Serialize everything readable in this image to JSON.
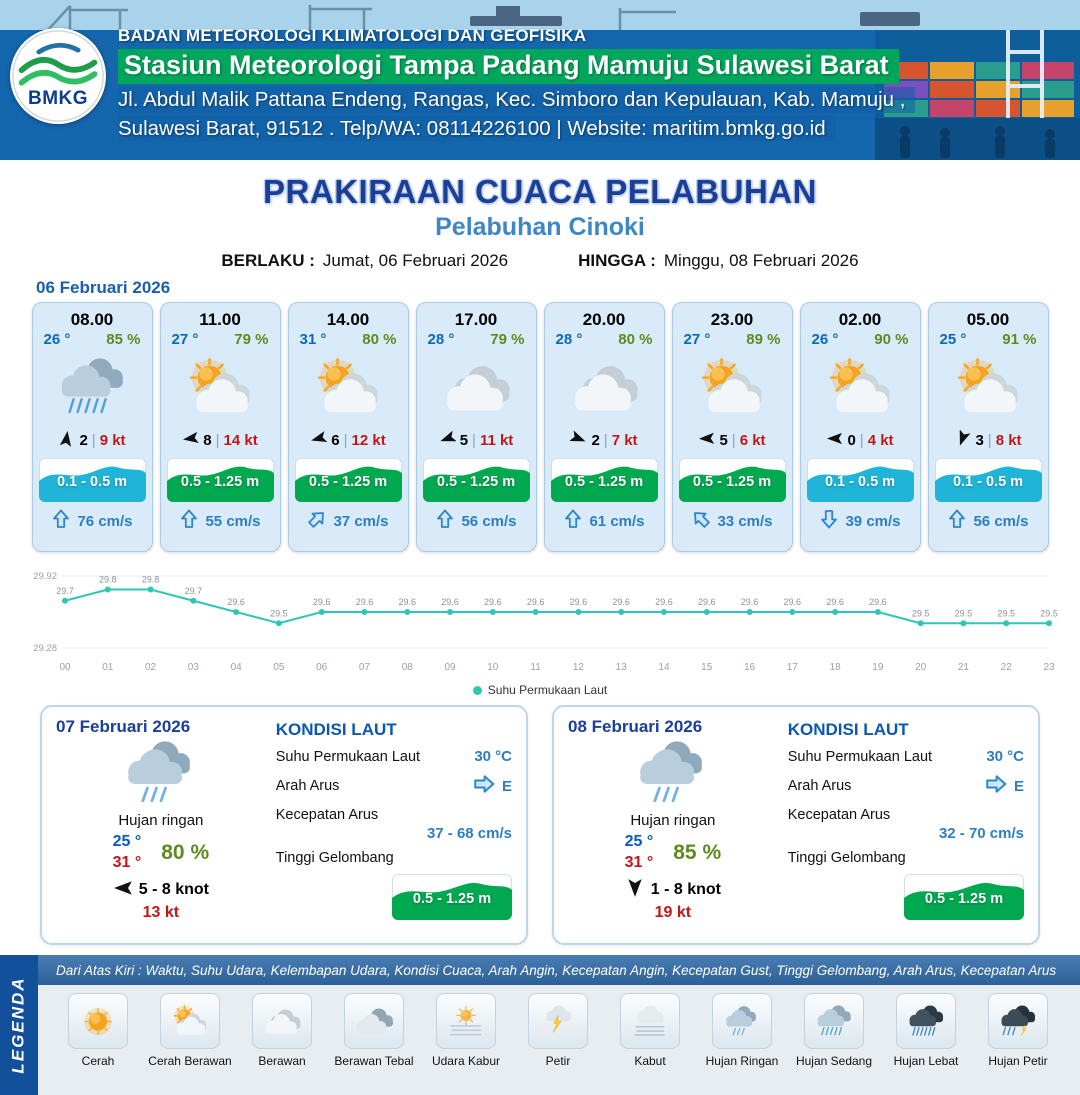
{
  "header": {
    "org": "BADAN METEOROLOGI KLIMATOLOGI DAN GEOFISIKA",
    "station": "Stasiun Meteorologi Tampa Padang Mamuju Sulawesi Barat",
    "address_line1": "Jl. Abdul Malik Pattana Endeng, Rangas, Kec. Simboro dan Kepulauan, Kab. Mamuju ,",
    "address_line2": "Sulawesi Barat, 91512 . Telp/WA: 08114226100 | Website: maritim.bmkg.go.id",
    "logo_text": "BMKG"
  },
  "title": {
    "main": "PRAKIRAAN CUACA PELABUHAN",
    "subtitle": "Pelabuhan Cinoki",
    "berlaku_label": "BERLAKU :",
    "berlaku_value": "Jumat, 06 Februari 2026",
    "hingga_label": "HINGGA :",
    "hingga_value": "Minggu, 08 Februari 2026"
  },
  "forecast": {
    "date": "06 Februari 2026",
    "wind_divider": "|",
    "cards": [
      {
        "time": "08.00",
        "temp": "26 °",
        "humidity": "85 %",
        "icon": "hujan-sedang",
        "wind_deg": 8,
        "wind_num": "2",
        "wind_speed": "9 kt",
        "wave": "0.1 - 0.5 m",
        "wave_color": "cyan",
        "current_deg": 0,
        "current": "76 cm/s"
      },
      {
        "time": "11.00",
        "temp": "27 °",
        "humidity": "79 %",
        "icon": "cerah-berawan",
        "wind_deg": 262,
        "wind_num": "8",
        "wind_speed": "14 kt",
        "wave": "0.5 - 1.25 m",
        "wave_color": "green",
        "current_deg": 0,
        "current": "55 cm/s"
      },
      {
        "time": "14.00",
        "temp": "31 °",
        "humidity": "80 %",
        "icon": "cerah-berawan",
        "wind_deg": 255,
        "wind_num": "6",
        "wind_speed": "12 kt",
        "wave": "0.5 - 1.25 m",
        "wave_color": "green",
        "current_deg": 45,
        "current": "37 cm/s"
      },
      {
        "time": "17.00",
        "temp": "28 °",
        "humidity": "79 %",
        "icon": "berawan",
        "wind_deg": 250,
        "wind_num": "5",
        "wind_speed": "11 kt",
        "wave": "0.5 - 1.25 m",
        "wave_color": "green",
        "current_deg": 0,
        "current": "56 cm/s"
      },
      {
        "time": "20.00",
        "temp": "28 °",
        "humidity": "80 %",
        "icon": "berawan",
        "wind_deg": 112,
        "wind_num": "2",
        "wind_speed": "7 kt",
        "wave": "0.5 - 1.25 m",
        "wave_color": "green",
        "current_deg": 0,
        "current": "61 cm/s"
      },
      {
        "time": "23.00",
        "temp": "27 °",
        "humidity": "89 %",
        "icon": "cerah-berawan",
        "wind_deg": 268,
        "wind_num": "5",
        "wind_speed": "6 kt",
        "wave": "0.5 - 1.25 m",
        "wave_color": "green",
        "current_deg": -45,
        "current": "33 cm/s"
      },
      {
        "time": "02.00",
        "temp": "26 °",
        "humidity": "90 %",
        "icon": "cerah-berawan",
        "wind_deg": 270,
        "wind_num": "0",
        "wind_speed": "4 kt",
        "wave": "0.1 - 0.5 m",
        "wave_color": "cyan",
        "current_deg": 180,
        "current": "39 cm/s"
      },
      {
        "time": "05.00",
        "temp": "25 °",
        "humidity": "91 %",
        "icon": "cerah-berawan",
        "wind_deg": 200,
        "wind_num": "3",
        "wind_speed": "8 kt",
        "wave": "0.1 - 0.5 m",
        "wave_color": "cyan",
        "current_deg": 0,
        "current": "56 cm/s"
      }
    ]
  },
  "chart_data": {
    "type": "line",
    "x": [
      "00",
      "01",
      "02",
      "03",
      "04",
      "05",
      "06",
      "07",
      "08",
      "09",
      "10",
      "11",
      "12",
      "13",
      "14",
      "15",
      "16",
      "17",
      "18",
      "19",
      "20",
      "21",
      "22",
      "23"
    ],
    "series": [
      {
        "name": "Suhu Permukaan Laut",
        "values": [
          29.7,
          29.8,
          29.8,
          29.7,
          29.6,
          29.5,
          29.6,
          29.6,
          29.6,
          29.6,
          29.6,
          29.6,
          29.6,
          29.6,
          29.6,
          29.6,
          29.6,
          29.6,
          29.6,
          29.6,
          29.5,
          29.5,
          29.5,
          29.5
        ]
      }
    ],
    "ylim": [
      29.28,
      29.92
    ],
    "yticks": [
      "29.92",
      "29.28"
    ],
    "legend_position": "bottom-center",
    "grid": false,
    "line_color": "#2fc7b4"
  },
  "days": [
    {
      "date": "07 Februari 2026",
      "icon": "hujan-ringan",
      "condition": "Hujan ringan",
      "temp_min": "25 °",
      "temp_max": "31 °",
      "humidity": "80 %",
      "wind_deg": 270,
      "wind_range": "5 - 8 knot",
      "gust": "13 kt",
      "sea": {
        "title": "KONDISI LAUT",
        "sst_label": "Suhu Permukaan Laut",
        "sst": "30 °C",
        "arah_label": "Arah Arus",
        "arah": "E",
        "kec_label": "Kecepatan Arus",
        "kec": "37 - 68 cm/s",
        "wave_label": "Tinggi Gelombang",
        "wave": "0.5 - 1.25 m"
      }
    },
    {
      "date": "08 Februari 2026",
      "icon": "hujan-ringan",
      "condition": "Hujan ringan",
      "temp_min": "25 °",
      "temp_max": "31 °",
      "humidity": "85 %",
      "wind_deg": 180,
      "wind_range": "1 - 8 knot",
      "gust": "19 kt",
      "sea": {
        "title": "KONDISI LAUT",
        "sst_label": "Suhu Permukaan Laut",
        "sst": "30 °C",
        "arah_label": "Arah Arus",
        "arah": "E",
        "kec_label": "Kecepatan Arus",
        "kec": "32 - 70 cm/s",
        "wave_label": "Tinggi Gelombang",
        "wave": "0.5 - 1.25 m"
      }
    }
  ],
  "legend": {
    "ribbon": "LEGENDA",
    "description": "Dari Atas Kiri : Waktu, Suhu Udara, Kelembapan Udara, Kondisi Cuaca, Arah Angin, Kecepatan Angin, Kecepatan Gust, Tinggi Gelombang, Arah Arus, Kecepatan Arus",
    "items": [
      {
        "label": "Cerah",
        "icon": "cerah"
      },
      {
        "label": "Cerah Berawan",
        "icon": "cerah-berawan"
      },
      {
        "label": "Berawan",
        "icon": "berawan"
      },
      {
        "label": "Berawan Tebal",
        "icon": "berawan-tebal"
      },
      {
        "label": "Udara Kabur",
        "icon": "udara-kabur"
      },
      {
        "label": "Petir",
        "icon": "petir"
      },
      {
        "label": "Kabut",
        "icon": "kabut"
      },
      {
        "label": "Hujan Ringan",
        "icon": "hujan-ringan"
      },
      {
        "label": "Hujan Sedang",
        "icon": "hujan-sedang"
      },
      {
        "label": "Hujan Lebat",
        "icon": "hujan-lebat"
      },
      {
        "label": "Hujan Petir",
        "icon": "hujan-petir"
      }
    ]
  },
  "colors": {
    "wave": {
      "green": "#00a84f",
      "cyan": "#1fb5d8"
    },
    "header_blue": "#1466ad",
    "station_green": "#00a65b",
    "temp_blue": "#0a68c0",
    "humidity_green": "#5b8c21",
    "speed_red": "#c01818",
    "current_blue": "#2d7fc3",
    "chart_line": "#2fc7b4"
  }
}
